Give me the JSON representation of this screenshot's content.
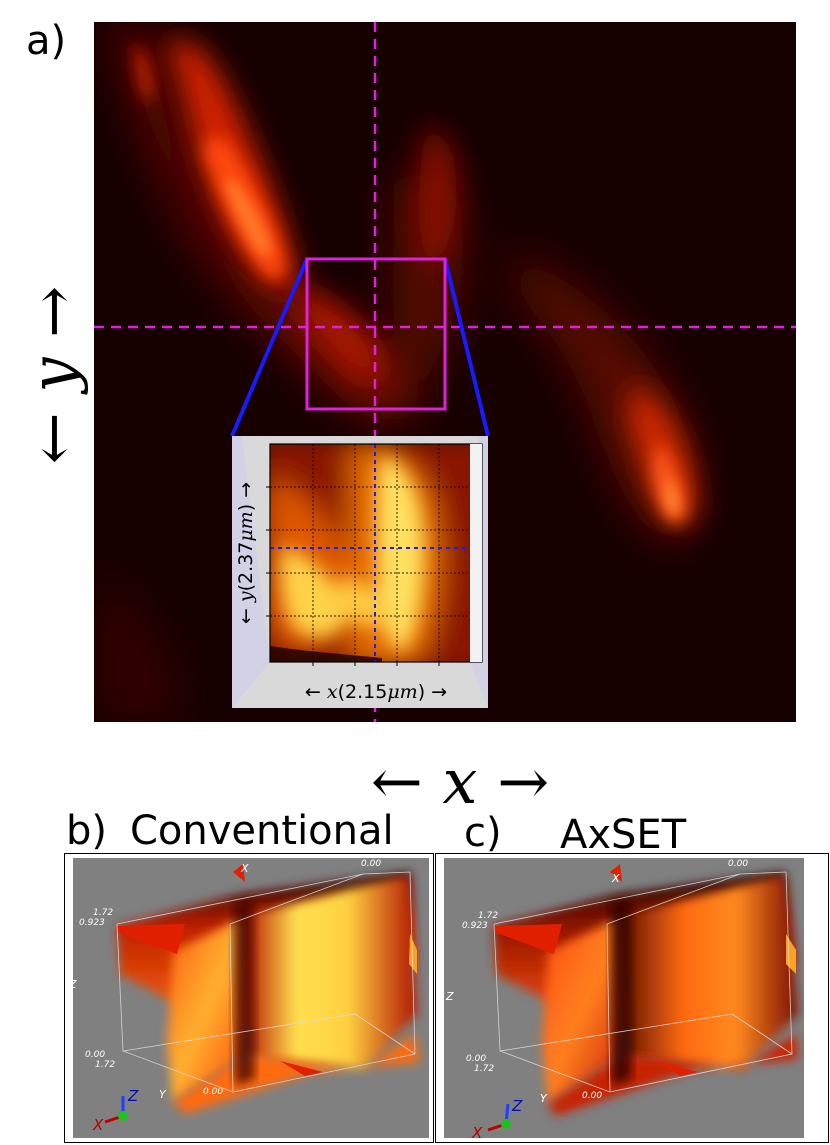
{
  "panel_a": {
    "letter": "a)",
    "y_axis": {
      "left_arrow": "←",
      "symbol": "y",
      "right_arrow": "→"
    },
    "x_axis": {
      "left_arrow": "←",
      "symbol": "x",
      "right_arrow": "→"
    },
    "inset": {
      "x_label": {
        "prefix": "← ",
        "sym": "x",
        "open": "(",
        "value": "2.15",
        "unit": "μm",
        "close": ")",
        "suffix": " →"
      },
      "y_label": {
        "prefix": "← ",
        "sym": "y",
        "open": "(",
        "value": "2.37",
        "unit": "μm",
        "close": ")",
        "suffix": " →"
      }
    },
    "colors": {
      "crosshair": "#e020e0",
      "zoom_box": "#e020e0",
      "connector": "#1a1aff",
      "inset_crosshair": "#1a1aff"
    }
  },
  "panel_b": {
    "letter": "b)",
    "title": "Conventional",
    "view": {
      "axis_x": "X",
      "axis_y": "Y",
      "axis_z": "Z",
      "tick_top_right": "0.00",
      "tick_top_1": "1.72",
      "tick_top_2": "0.923",
      "tick_bottom_left_1": "0.00",
      "tick_bottom_left_2": "1.72",
      "tick_bottom_mid": "0.00",
      "triad_x": "X",
      "triad_y": "Y",
      "triad_z": "Z"
    }
  },
  "panel_c": {
    "letter": "c)",
    "title": "AxSET",
    "view": {
      "axis_x": "X",
      "axis_y": "Y",
      "axis_z": "Z",
      "tick_top_right": "0.00",
      "tick_top_1": "1.72",
      "tick_top_2": "0.923",
      "tick_bottom_left_1": "0.00",
      "tick_bottom_left_2": "1.72",
      "tick_bottom_mid": "0.00",
      "triad_x": "X",
      "triad_y": "Y",
      "triad_z": "Z"
    }
  }
}
